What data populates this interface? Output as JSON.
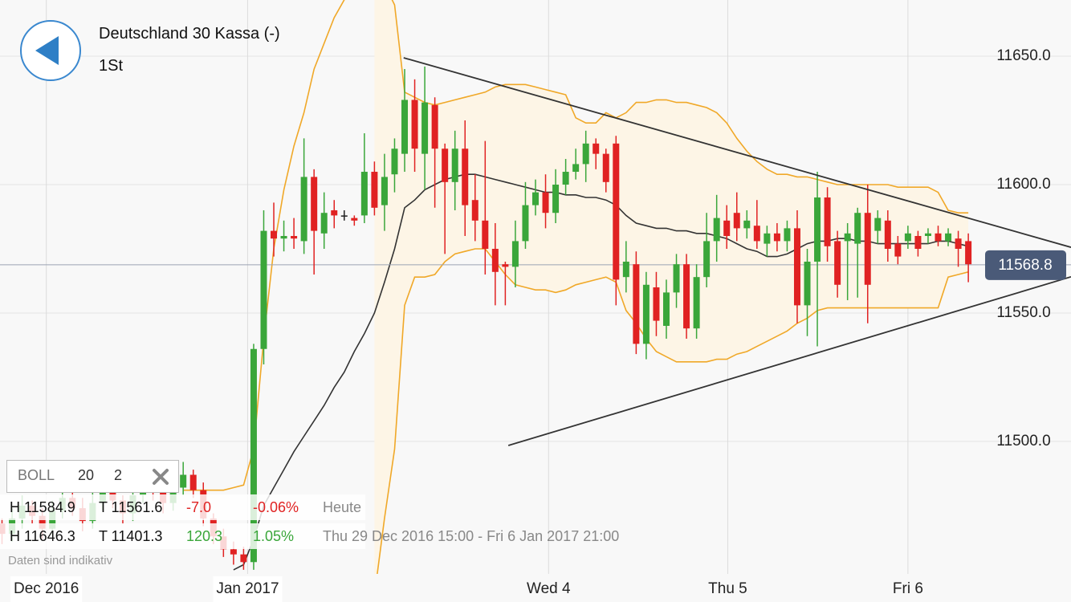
{
  "header": {
    "title": "Deutschland 30 Kassa (-)",
    "interval": "1St"
  },
  "chart_data": {
    "type": "candlestick",
    "candles": {
      "open": [
        11462,
        11468,
        11464,
        11470,
        11475,
        11471,
        11466,
        11473,
        11478,
        11474,
        11469,
        11476,
        11481,
        11477,
        11472,
        11479,
        11485,
        11480,
        11476,
        11482,
        11487,
        11481,
        11470,
        11463,
        11458,
        11456,
        11453,
        11536,
        11582,
        11579,
        11580,
        11578,
        11603,
        11581,
        11590,
        11588,
        11587,
        11588,
        11605,
        11592,
        11604,
        11612,
        11633,
        11612,
        11631,
        11614,
        11601,
        11614,
        11594,
        11586,
        11575,
        11569,
        11568,
        11578,
        11592,
        11597,
        11589,
        11600,
        11605,
        11608,
        11616,
        11612,
        11616,
        11564,
        11569,
        11538,
        11560,
        11545,
        11558,
        11569,
        11544,
        11564,
        11578,
        11586,
        11589,
        11583,
        11584,
        11577,
        11581,
        11578,
        11583,
        11553,
        11570,
        11595,
        11578,
        11578,
        11577,
        11589,
        11582,
        11586,
        11577,
        11578,
        11580,
        11580,
        11581,
        11578,
        11579,
        11578
      ],
      "high": [
        11472,
        11470,
        11474,
        11479,
        11477,
        11474,
        11477,
        11483,
        11480,
        11478,
        11480,
        11486,
        11483,
        11479,
        11484,
        11490,
        11488,
        11482,
        11486,
        11492,
        11489,
        11484,
        11472,
        11466,
        11461,
        11459,
        11538,
        11590,
        11593,
        11586,
        11587,
        11618,
        11606,
        11597,
        11594,
        11590,
        11588,
        11620,
        11609,
        11612,
        11618,
        11645,
        11641,
        11646,
        11634,
        11616,
        11621,
        11625,
        11604,
        11617,
        11585,
        11570,
        11586,
        11601,
        11602,
        11604,
        11606,
        11610,
        11614,
        11621,
        11618,
        11614,
        11619,
        11578,
        11574,
        11566,
        11566,
        11563,
        11573,
        11573,
        11569,
        11589,
        11596,
        11592,
        11597,
        11590,
        11594,
        11584,
        11585,
        11586,
        11590,
        11575,
        11605,
        11599,
        11582,
        11585,
        11591,
        11600,
        11590,
        11590,
        11580,
        11584,
        11582,
        11583,
        11584,
        11583,
        11582,
        11581
      ],
      "low": [
        11458,
        11460,
        11461,
        11466,
        11468,
        11462,
        11463,
        11470,
        11471,
        11465,
        11466,
        11473,
        11474,
        11468,
        11469,
        11476,
        11477,
        11472,
        11473,
        11479,
        11478,
        11467,
        11460,
        11455,
        11452,
        11450,
        11450,
        11530,
        11572,
        11574,
        11575,
        11573,
        11565,
        11575,
        11583,
        11586,
        11584,
        11585,
        11588,
        11582,
        11597,
        11605,
        11605,
        11598,
        11591,
        11573,
        11590,
        11580,
        11578,
        11565,
        11553,
        11553,
        11560,
        11575,
        11588,
        11583,
        11585,
        11596,
        11602,
        11601,
        11606,
        11597,
        11553,
        11558,
        11534,
        11532,
        11541,
        11540,
        11552,
        11540,
        11540,
        11560,
        11570,
        11575,
        11578,
        11579,
        11575,
        11572,
        11574,
        11574,
        11546,
        11541,
        11537,
        11570,
        11556,
        11555,
        11556,
        11546,
        11577,
        11570,
        11569,
        11575,
        11572,
        11577,
        11576,
        11576,
        11568,
        11562
      ],
      "close": [
        11468,
        11464,
        11470,
        11475,
        11471,
        11466,
        11473,
        11478,
        11474,
        11469,
        11476,
        11481,
        11477,
        11472,
        11479,
        11485,
        11480,
        11476,
        11482,
        11487,
        11481,
        11470,
        11463,
        11458,
        11456,
        11453,
        11536,
        11582,
        11579,
        11580,
        11579,
        11603,
        11582,
        11589,
        11588,
        11588,
        11586,
        11605,
        11591,
        11603,
        11614,
        11633,
        11614,
        11632,
        11614,
        11601,
        11614,
        11592,
        11586,
        11575,
        11566,
        11568,
        11578,
        11592,
        11597,
        11589,
        11600,
        11605,
        11608,
        11616,
        11612,
        11601,
        11563,
        11570,
        11538,
        11561,
        11547,
        11558,
        11569,
        11544,
        11564,
        11578,
        11587,
        11580,
        11583,
        11586,
        11578,
        11581,
        11578,
        11583,
        11553,
        11570,
        11595,
        11576,
        11561,
        11581,
        11589,
        11561,
        11587,
        11575,
        11572,
        11581,
        11575,
        11581,
        11578,
        11581,
        11575,
        11569
      ]
    },
    "up_color": "#3aa63a",
    "down_color": "#e02222",
    "flat_color": "#222222",
    "bollinger": {
      "color": "#f0a828",
      "middle_color": "#333333",
      "fill": "#fdf5e6",
      "upper": [
        null,
        null,
        null,
        null,
        null,
        null,
        null,
        null,
        null,
        null,
        null,
        null,
        null,
        null,
        null,
        null,
        null,
        null,
        null,
        11481,
        11481,
        11481,
        11481,
        11481,
        11482,
        11483,
        11497,
        11540,
        11575,
        11598,
        11615,
        11628,
        11645,
        11655,
        11665,
        11672,
        11680,
        11682,
        11680,
        11678,
        11670,
        11636,
        11634,
        11632,
        11631,
        11632,
        11633,
        11634,
        11635,
        11636,
        11638,
        11639,
        11639,
        11639,
        11638,
        11637,
        11636,
        11635,
        11626,
        11624,
        11624,
        11628,
        11626,
        11628,
        11632,
        11632,
        11633,
        11633,
        11632,
        11632,
        11631,
        11630,
        11628,
        11624,
        11618,
        11613,
        11609,
        11606,
        11604,
        11604,
        11603,
        11603,
        11602,
        11601,
        11600,
        11600,
        11600,
        11600,
        11600,
        11600,
        11599,
        11599,
        11599,
        11599,
        11597,
        11590,
        11589,
        11589
      ],
      "middle": [
        null,
        null,
        null,
        null,
        null,
        null,
        null,
        null,
        null,
        null,
        null,
        null,
        null,
        null,
        null,
        null,
        null,
        null,
        null,
        null,
        null,
        null,
        null,
        null,
        11450,
        11452,
        11462,
        11475,
        11482,
        11489,
        11496,
        11502,
        11508,
        11514,
        11521,
        11527,
        11535,
        11542,
        11550,
        11562,
        11575,
        11591,
        11594,
        11598,
        11600,
        11602,
        11603,
        11604,
        11604,
        11603,
        11602,
        11601,
        11600,
        11599,
        11598,
        11597,
        11597,
        11596,
        11596,
        11595,
        11595,
        11594,
        11592,
        11588,
        11585,
        11584,
        11583,
        11583,
        11582,
        11582,
        11581,
        11581,
        11580,
        11579,
        11577,
        11575,
        11574,
        11572,
        11572,
        11573,
        11575,
        11577,
        11578,
        11578,
        11579,
        11579,
        11578,
        11578,
        11577,
        11577,
        11577,
        11577,
        11577,
        11577,
        11578,
        11578,
        11577,
        11576
      ],
      "lower": [
        null,
        null,
        null,
        null,
        null,
        null,
        null,
        null,
        null,
        null,
        null,
        null,
        null,
        null,
        null,
        null,
        null,
        null,
        null,
        null,
        null,
        null,
        null,
        null,
        null,
        null,
        null,
        null,
        null,
        null,
        null,
        null,
        null,
        null,
        null,
        null,
        null,
        null,
        11440,
        11470,
        11497,
        11553,
        11564,
        11564,
        11565,
        11570,
        11573,
        11574,
        11575,
        11575,
        11570,
        11565,
        11561,
        11560,
        11559,
        11559,
        11558,
        11559,
        11561,
        11562,
        11563,
        11564,
        11562,
        11551,
        11546,
        11540,
        11535,
        11533,
        11531,
        11531,
        11531,
        11531,
        11532,
        11532,
        11534,
        11535,
        11537,
        11539,
        11541,
        11543,
        11546,
        11548,
        11551,
        11552,
        11552,
        11552,
        11552,
        11552,
        11552,
        11552,
        11552,
        11552,
        11552,
        11552,
        11552,
        11564,
        11565,
        11566
      ]
    },
    "trendlines": [
      {
        "x": [
          40.9,
          107.2
        ],
        "y": [
          11649.4,
          11575.6
        ]
      },
      {
        "x": [
          51.3,
          107.2
        ],
        "y": [
          11498.4,
          11564.1
        ]
      }
    ],
    "last_price": 11568.8,
    "xlim": [
      0.8,
      107.2
    ],
    "xticks": [
      {
        "value": 5.4,
        "label": "Dec 2016"
      },
      {
        "value": 25.4,
        "label": "Jan 2017"
      },
      {
        "value": 55.3,
        "label": "Wed 4"
      },
      {
        "value": 73.1,
        "label": "Thu 5"
      },
      {
        "value": 91.0,
        "label": "Fri 6"
      }
    ],
    "ylim": [
      11448.4,
      11671.9
    ],
    "yticks": [
      {
        "value": 11500,
        "label": "11500.0"
      },
      {
        "value": 11550,
        "label": "11550.0"
      },
      {
        "value": 11600,
        "label": "11600.0"
      },
      {
        "value": 11650,
        "label": "11650.0"
      }
    ],
    "grid": true
  },
  "indicator": {
    "name": "BOLL",
    "period": 20,
    "deviation": 2
  },
  "stats": [
    {
      "high": "H 11584.9",
      "low": "T 11561.6",
      "change": "-7.0",
      "percent": "-0.06%",
      "range": "Heute"
    },
    {
      "high": "H 11646.3",
      "low": "T 11401.3",
      "change": "120.3",
      "percent": "1.05%",
      "range": "Thu 29 Dec 2016 15:00 - Fri 6 Jan 2017 21:00"
    }
  ],
  "disclaimer": "Daten sind indikativ"
}
